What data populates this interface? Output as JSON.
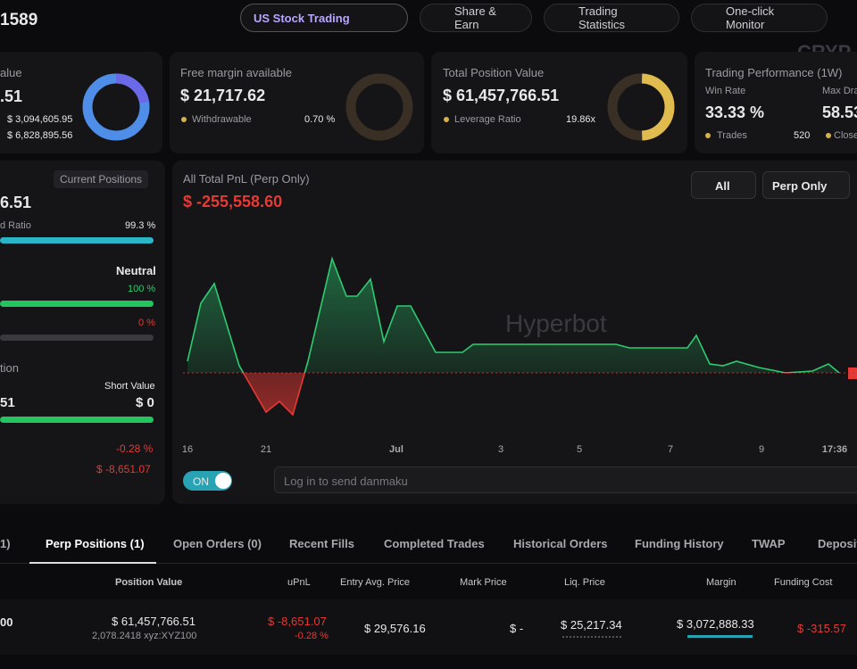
{
  "header": {
    "account": "1589",
    "buttons": [
      "US Stock Trading",
      "Share & Earn",
      "Trading Statistics",
      "One-click Monitor"
    ],
    "watermark": "CRYP"
  },
  "cards": [
    {
      "title": "alue",
      "value": ".51",
      "rows": [
        "$ 3,094,605.95",
        "$ 6,828,895.56"
      ]
    },
    {
      "title": "Free margin available",
      "value": "$ 21,717.62",
      "label": "Withdrawable",
      "stat": "0.70 %"
    },
    {
      "title": "Total Position Value",
      "value": "$ 61,457,766.51",
      "label": "Leverage Ratio",
      "stat": "19.86x"
    },
    {
      "title": "Trading Performance (1W)",
      "col1_label": "Win Rate",
      "col1_value": "33.33 %",
      "col2_label": "Max Dra",
      "col2_value": "58.53",
      "label": "Trades",
      "stat": "520",
      "label2": "Close"
    }
  ],
  "left_panel": {
    "tag": "Current Positions",
    "value": "6.51",
    "ratio_label": "d Ratio",
    "ratio": "99.3 %",
    "bias": "Neutral",
    "long_pct": "100 %",
    "short_pct": "0 %",
    "section": "tion",
    "short_label": "Short Value",
    "long_value": "51",
    "short_value": "$ 0",
    "upnl_pct": "-0.28 %",
    "upnl": "$ -8,651.07"
  },
  "chart_data": {
    "type": "line",
    "title": "All Total PnL (Perp Only)",
    "subtitle": "$ -255,558.60",
    "watermark": "Hyperbot",
    "filters": [
      "All",
      "Perp Only"
    ],
    "x": [
      0,
      15,
      30,
      58,
      88,
      103,
      118,
      135,
      162,
      178,
      190,
      205,
      220,
      235,
      250,
      278,
      308,
      320,
      480,
      495,
      560,
      570,
      585,
      600,
      615,
      640,
      670,
      700,
      718,
      730
    ],
    "series": [
      {
        "name": "PnL",
        "color": "#2ecc71",
        "negative_color": "#e53935",
        "values": [
          13,
          78,
          100,
          8,
          -44,
          -32,
          -47,
          13,
          128,
          86,
          86,
          105,
          35,
          75,
          75,
          23,
          23,
          32,
          32,
          28,
          28,
          42,
          10,
          8,
          13,
          6,
          0,
          2,
          10,
          0
        ]
      }
    ],
    "xlim": [
      0,
      750
    ],
    "ylim": [
      -72,
      150
    ],
    "xticks": [
      {
        "value": 0,
        "label": "16"
      },
      {
        "value": 88,
        "label": "21"
      },
      {
        "value": 234,
        "label": "Jul"
      },
      {
        "value": 351,
        "label": "3"
      },
      {
        "value": 439,
        "label": "5"
      },
      {
        "value": 541,
        "label": "7"
      },
      {
        "value": 643,
        "label": "9"
      },
      {
        "value": 725,
        "label": "17:36"
      }
    ]
  },
  "danmaku": {
    "toggle": "ON",
    "placeholder": "Log in to send danmaku"
  },
  "tabs": [
    "1)",
    "Perp Positions (1)",
    "Open Orders (0)",
    "Recent Fills",
    "Completed Trades",
    "Historical Orders",
    "Funding History",
    "TWAP",
    "Deposit"
  ],
  "table": {
    "headers": [
      "Position Value",
      "uPnL",
      "Entry Avg. Price",
      "Mark Price",
      "Liq. Price",
      "Margin",
      "Funding Cost"
    ],
    "row": {
      "coin": "00",
      "position_value": "$ 61,457,766.51",
      "size": "2,078.2418 xyz:XYZ100",
      "upnl": "$ -8,651.07",
      "upnl_pct": "-0.28 %",
      "entry": "$ 29,576.16",
      "mark": "$ -",
      "liq": "$ 25,217.34",
      "margin": "$ 3,072,888.33",
      "funding": "$ -315.57"
    }
  }
}
